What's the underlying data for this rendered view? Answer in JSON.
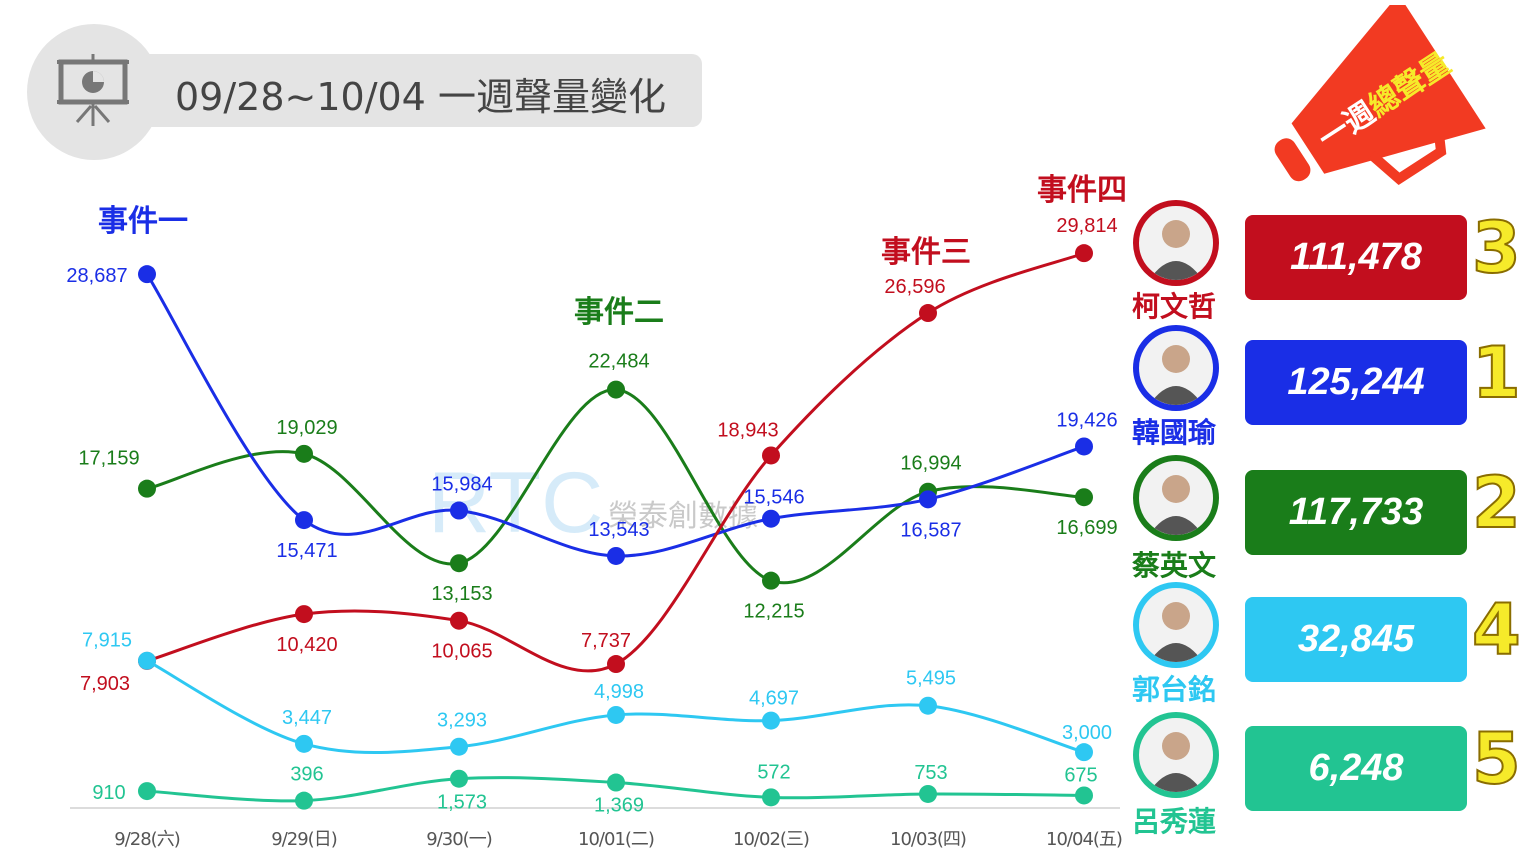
{
  "header": {
    "title": "09/28~10/04 一週聲量變化",
    "icon": "presentation-chart-icon"
  },
  "megaphone": {
    "text_white": "一週",
    "text_yellow": "總聲量",
    "color": "#f23a22"
  },
  "watermark": {
    "logo": "RTC",
    "text": "榮泰創數據"
  },
  "chart_data": {
    "type": "line",
    "title": "09/28~10/04 一週聲量變化",
    "categories": [
      "9/28(六)",
      "9/29(日)",
      "9/30(一)",
      "10/01(二)",
      "10/02(三)",
      "10/03(四)",
      "10/04(五)"
    ],
    "ylim": [
      0,
      30000
    ],
    "grid": false,
    "series": [
      {
        "name": "蔡英文",
        "color": "#1a7d1a",
        "values": [
          17159,
          19029,
          13153,
          22484,
          12215,
          16994,
          16699
        ],
        "labels": [
          "17,159",
          "19,029",
          "13,153",
          "22,484",
          "12,215",
          "16,994",
          "16,699"
        ]
      },
      {
        "name": "韓國瑜",
        "color": "#1a2ee6",
        "values": [
          28687,
          15471,
          15984,
          13543,
          15546,
          16587,
          19426
        ],
        "labels": [
          "28,687",
          "15,471",
          "15,984",
          "13,543",
          "15,546",
          "16,587",
          "19,426"
        ]
      },
      {
        "name": "柯文哲",
        "color": "#c20e1e",
        "values": [
          7903,
          10420,
          10065,
          7737,
          18943,
          26596,
          29814
        ],
        "labels": [
          "7,903",
          "10,420",
          "10,065",
          "7,737",
          "18,943",
          "26,596",
          "29,814"
        ]
      },
      {
        "name": "郭台銘",
        "color": "#2ec8f2",
        "values": [
          7915,
          3447,
          3293,
          4998,
          4697,
          5495,
          3000
        ],
        "labels": [
          "7,915",
          "3,447",
          "3,293",
          "4,998",
          "4,697",
          "5,495",
          "3,000"
        ]
      },
      {
        "name": "呂秀蓮",
        "color": "#22c492",
        "values": [
          910,
          396,
          1573,
          1369,
          572,
          753,
          675
        ],
        "labels": [
          "910",
          "396",
          "1,573",
          "1,369",
          "572",
          "753",
          "675"
        ]
      }
    ],
    "annotations": [
      {
        "text": "事件一",
        "color": "#1a2ee6"
      },
      {
        "text": "事件二",
        "color": "#1a7d1a"
      },
      {
        "text": "事件三",
        "color": "#c20e1e"
      },
      {
        "text": "事件四",
        "color": "#c20e1e"
      }
    ]
  },
  "ranking": [
    {
      "name": "柯文哲",
      "total": "111,478",
      "rank": "3",
      "color": "#c20e1e"
    },
    {
      "name": "韓國瑜",
      "total": "125,244",
      "rank": "1",
      "color": "#1a2ee6"
    },
    {
      "name": "蔡英文",
      "total": "117,733",
      "rank": "2",
      "color": "#1a7d1a"
    },
    {
      "name": "郭台銘",
      "total": "32,845",
      "rank": "4",
      "color": "#2ec8f2"
    },
    {
      "name": "呂秀蓮",
      "total": "6,248",
      "rank": "5",
      "color": "#22c492"
    }
  ]
}
